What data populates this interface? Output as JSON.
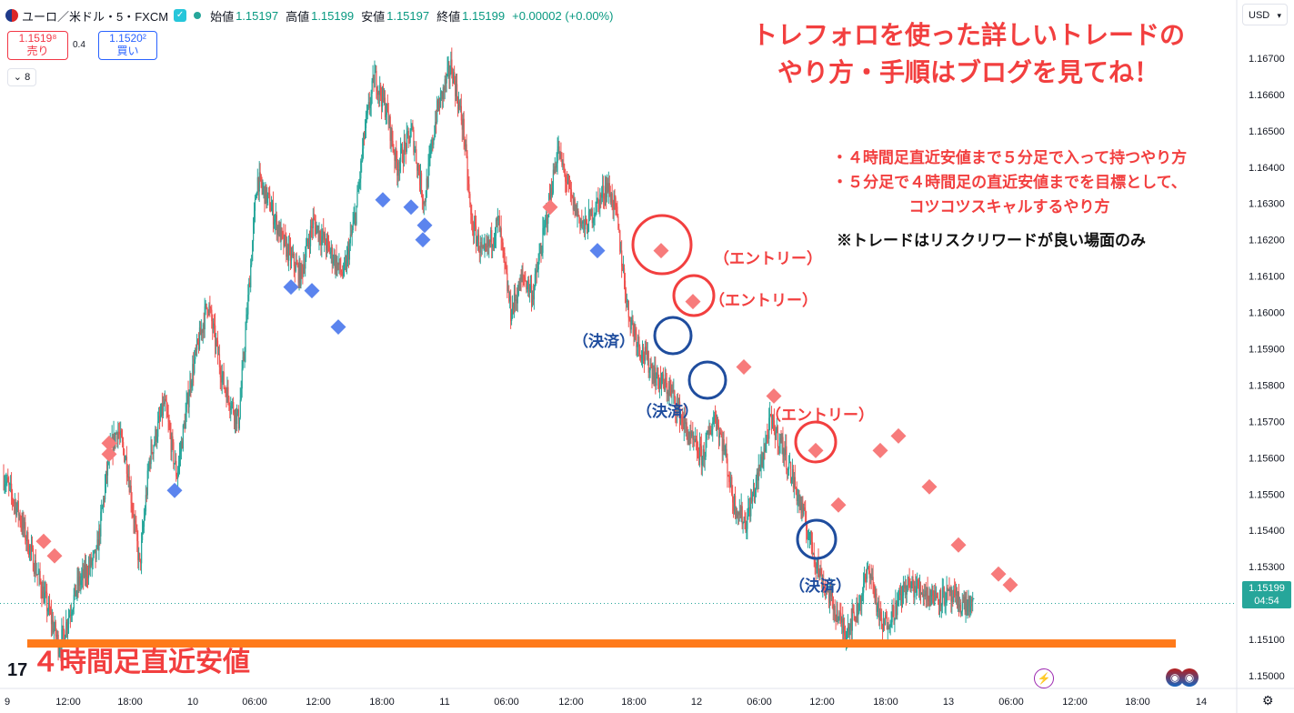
{
  "header": {
    "symbol": "ユーロ／米ドル・5・FXCM",
    "open_label": "始値",
    "open": "1.15197",
    "high_label": "高値",
    "high": "1.15199",
    "low_label": "安値",
    "low": "1.15197",
    "close_label": "終値",
    "close": "1.15199",
    "change": "+0.00002 (+0.00%)"
  },
  "quote": {
    "sell_price": "1.1519⁸",
    "sell_label": "売り",
    "spread": "0.4",
    "buy_price": "1.1520²",
    "buy_label": "買い",
    "indicator_count": "8"
  },
  "currency": "USD",
  "current_price": {
    "price": "1.15199",
    "countdown": "04:54"
  },
  "annotations": {
    "title_line1": "トレフォロを使った詳しいトレードの",
    "title_line2": "やり方・手順はブログを見てね！",
    "bullet1": "・４時間足直近安値まで５分足で入って持つやり方",
    "bullet2": "・５分足で４時間足の直近安値までを目標として、",
    "bullet3": "コツコツスキャルするやり方",
    "note": "※トレードはリスクリワードが良い場面のみ",
    "entry": "（エントリー）",
    "settle": "（決済）",
    "support_label": "４時間足直近安値"
  },
  "chart_data": {
    "type": "candlestick",
    "price_axis": [
      "1.16700",
      "1.16600",
      "1.16500",
      "1.16400",
      "1.16300",
      "1.16200",
      "1.16100",
      "1.16000",
      "1.15900",
      "1.15800",
      "1.15700",
      "1.15600",
      "1.15500",
      "1.15400",
      "1.15300",
      "1.15100",
      "1.15000"
    ],
    "ylim": [
      1.1497,
      1.1676
    ],
    "time_axis": [
      "9",
      "12:00",
      "18:00",
      "10",
      "06:00",
      "12:00",
      "18:00",
      "11",
      "06:00",
      "12:00",
      "18:00",
      "12",
      "06:00",
      "12:00",
      "18:00",
      "13",
      "06:00",
      "12:00",
      "18:00",
      "14"
    ],
    "price_path": [
      [
        0,
        1.1555
      ],
      [
        0.012,
        1.1545
      ],
      [
        0.03,
        1.1525
      ],
      [
        0.045,
        1.1508
      ],
      [
        0.06,
        1.1525
      ],
      [
        0.075,
        1.1533
      ],
      [
        0.085,
        1.156
      ],
      [
        0.092,
        1.1568
      ],
      [
        0.1,
        1.1558
      ],
      [
        0.11,
        1.153
      ],
      [
        0.118,
        1.156
      ],
      [
        0.13,
        1.1575
      ],
      [
        0.14,
        1.1555
      ],
      [
        0.152,
        1.1583
      ],
      [
        0.165,
        1.1603
      ],
      [
        0.178,
        1.158
      ],
      [
        0.19,
        1.157
      ],
      [
        0.198,
        1.1605
      ],
      [
        0.205,
        1.1637
      ],
      [
        0.215,
        1.163
      ],
      [
        0.225,
        1.162
      ],
      [
        0.24,
        1.161
      ],
      [
        0.25,
        1.1625
      ],
      [
        0.262,
        1.1618
      ],
      [
        0.275,
        1.161
      ],
      [
        0.285,
        1.1628
      ],
      [
        0.292,
        1.165
      ],
      [
        0.3,
        1.1665
      ],
      [
        0.31,
        1.1655
      ],
      [
        0.318,
        1.164
      ],
      [
        0.33,
        1.165
      ],
      [
        0.34,
        1.163
      ],
      [
        0.35,
        1.1655
      ],
      [
        0.362,
        1.1668
      ],
      [
        0.372,
        1.165
      ],
      [
        0.378,
        1.1625
      ],
      [
        0.388,
        1.1615
      ],
      [
        0.4,
        1.1625
      ],
      [
        0.41,
        1.16
      ],
      [
        0.42,
        1.161
      ],
      [
        0.428,
        1.1605
      ],
      [
        0.44,
        1.1628
      ],
      [
        0.448,
        1.1645
      ],
      [
        0.46,
        1.163
      ],
      [
        0.47,
        1.1623
      ],
      [
        0.48,
        1.163
      ],
      [
        0.488,
        1.1635
      ],
      [
        0.495,
        1.1628
      ],
      [
        0.505,
        1.16
      ],
      [
        0.515,
        1.159
      ],
      [
        0.528,
        1.1582
      ],
      [
        0.54,
        1.1578
      ],
      [
        0.555,
        1.1565
      ],
      [
        0.565,
        1.156
      ],
      [
        0.575,
        1.1572
      ],
      [
        0.583,
        1.1562
      ],
      [
        0.59,
        1.1548
      ],
      [
        0.6,
        1.1542
      ],
      [
        0.61,
        1.1555
      ],
      [
        0.62,
        1.157
      ],
      [
        0.63,
        1.1563
      ],
      [
        0.64,
        1.1552
      ],
      [
        0.65,
        1.154
      ],
      [
        0.66,
        1.1528
      ],
      [
        0.67,
        1.152
      ],
      [
        0.68,
        1.1512
      ],
      [
        0.69,
        1.1518
      ],
      [
        0.7,
        1.153
      ],
      [
        0.71,
        1.1513
      ],
      [
        0.72,
        1.1518
      ],
      [
        0.73,
        1.1525
      ],
      [
        0.74,
        1.1524
      ],
      [
        0.752,
        1.1522
      ],
      [
        0.762,
        1.1522
      ],
      [
        0.772,
        1.152
      ],
      [
        0.785,
        1.1519
      ]
    ],
    "support_level": 1.1509,
    "sell_markers": [
      [
        1.1537,
        "red"
      ],
      [
        1.1533,
        "red"
      ],
      [
        1.1564,
        "red"
      ],
      [
        1.1561,
        "red"
      ],
      [
        1.1629,
        "red"
      ],
      [
        1.1617,
        "red"
      ],
      [
        1.1603,
        "red"
      ],
      [
        1.1585,
        "red"
      ],
      [
        1.1577,
        "red"
      ],
      [
        1.1562,
        "red"
      ],
      [
        1.1547,
        "red"
      ],
      [
        1.1562,
        "red"
      ],
      [
        1.1566,
        "red"
      ],
      [
        1.1552,
        "red"
      ],
      [
        1.1536,
        "red"
      ],
      [
        1.1528,
        "red"
      ],
      [
        1.1525,
        "red"
      ]
    ],
    "buy_markers": [
      [
        1.1551,
        "blue"
      ],
      [
        1.1607,
        "blue"
      ],
      [
        1.1606,
        "blue"
      ],
      [
        1.1596,
        "blue"
      ],
      [
        1.1631,
        "blue"
      ],
      [
        1.1629,
        "blue"
      ],
      [
        1.1624,
        "blue"
      ],
      [
        1.162,
        "blue"
      ],
      [
        1.1617,
        "blue"
      ]
    ]
  },
  "colors": {
    "up": "#26a69a",
    "down": "#ef5350",
    "sell_marker": "#f77b7b",
    "buy_marker": "#5b84ee",
    "support": "#ff7a1a",
    "entry_circle": "#f23f3f",
    "settle_circle": "#1f4d9e"
  }
}
